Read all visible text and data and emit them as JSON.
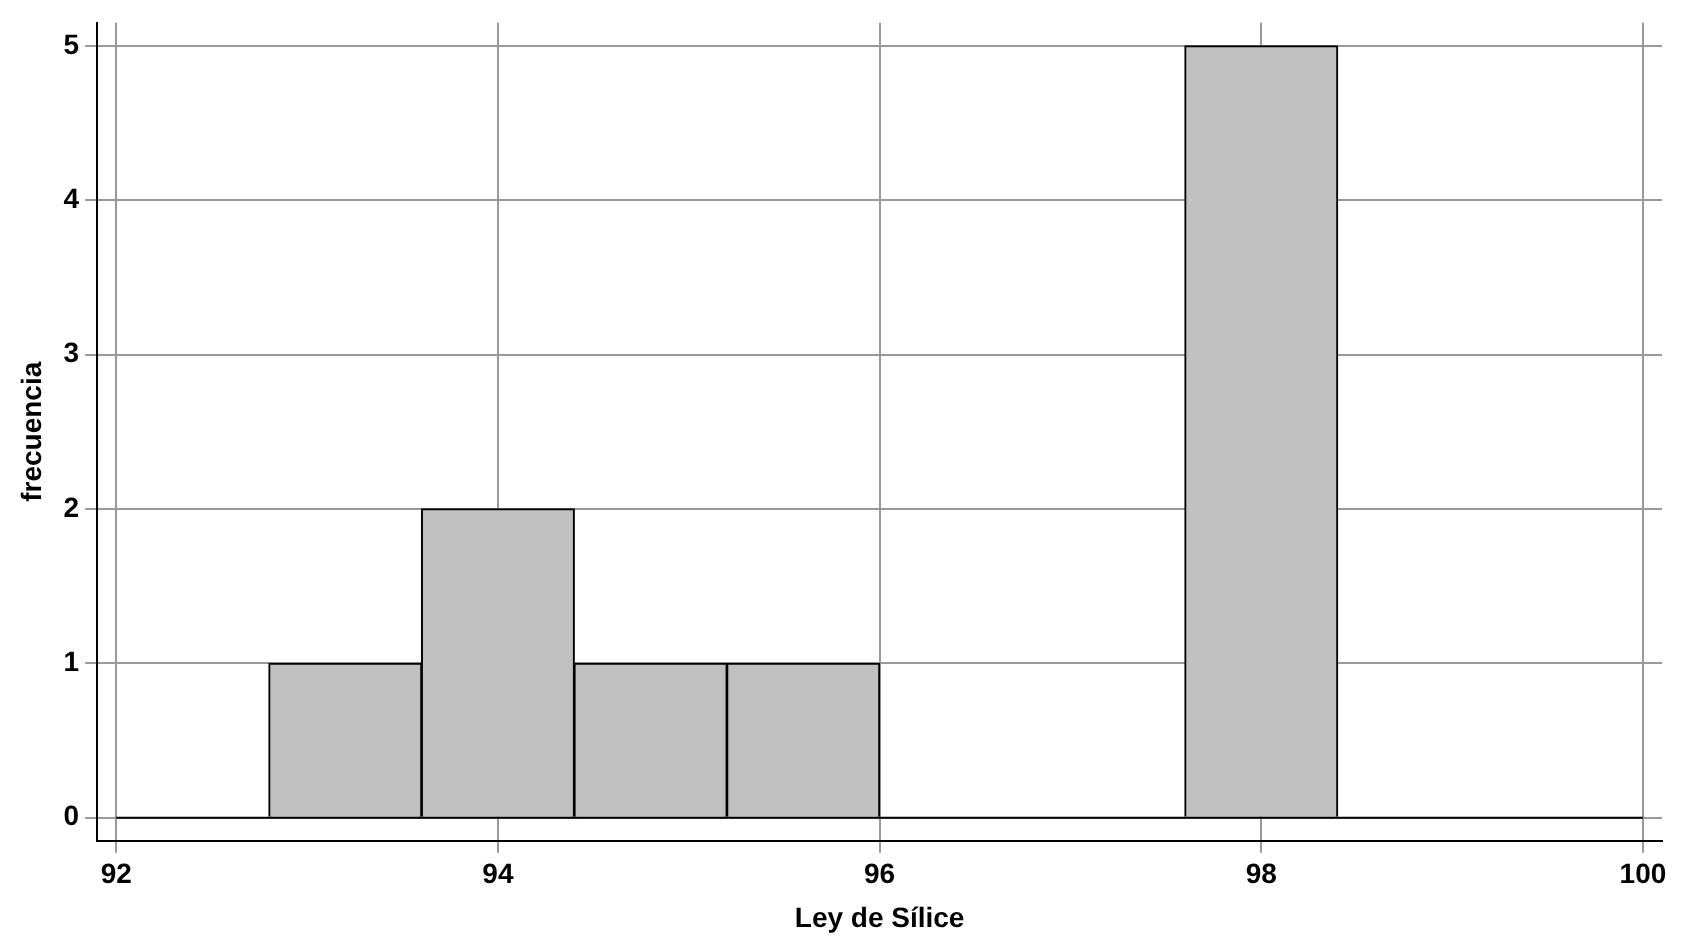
{
  "chart_data": {
    "type": "histogram",
    "xlabel": "Ley de Sílice",
    "ylabel": "frecuencia",
    "bins": [
      92,
      92.8,
      93.6,
      94.4,
      95.2,
      96,
      96.8,
      97.6,
      98.4,
      99.2,
      100
    ],
    "values": [
      0,
      1,
      2,
      1,
      1,
      0,
      0,
      5,
      0,
      0
    ],
    "color": "#c0c0c0",
    "xlim": [
      91.9,
      100.1
    ],
    "xticks": [
      92,
      94,
      96,
      98,
      100
    ],
    "ylim": [
      -0.15,
      5.15
    ],
    "yticks": [
      0,
      1,
      2,
      3,
      4,
      5
    ],
    "grid": true
  }
}
